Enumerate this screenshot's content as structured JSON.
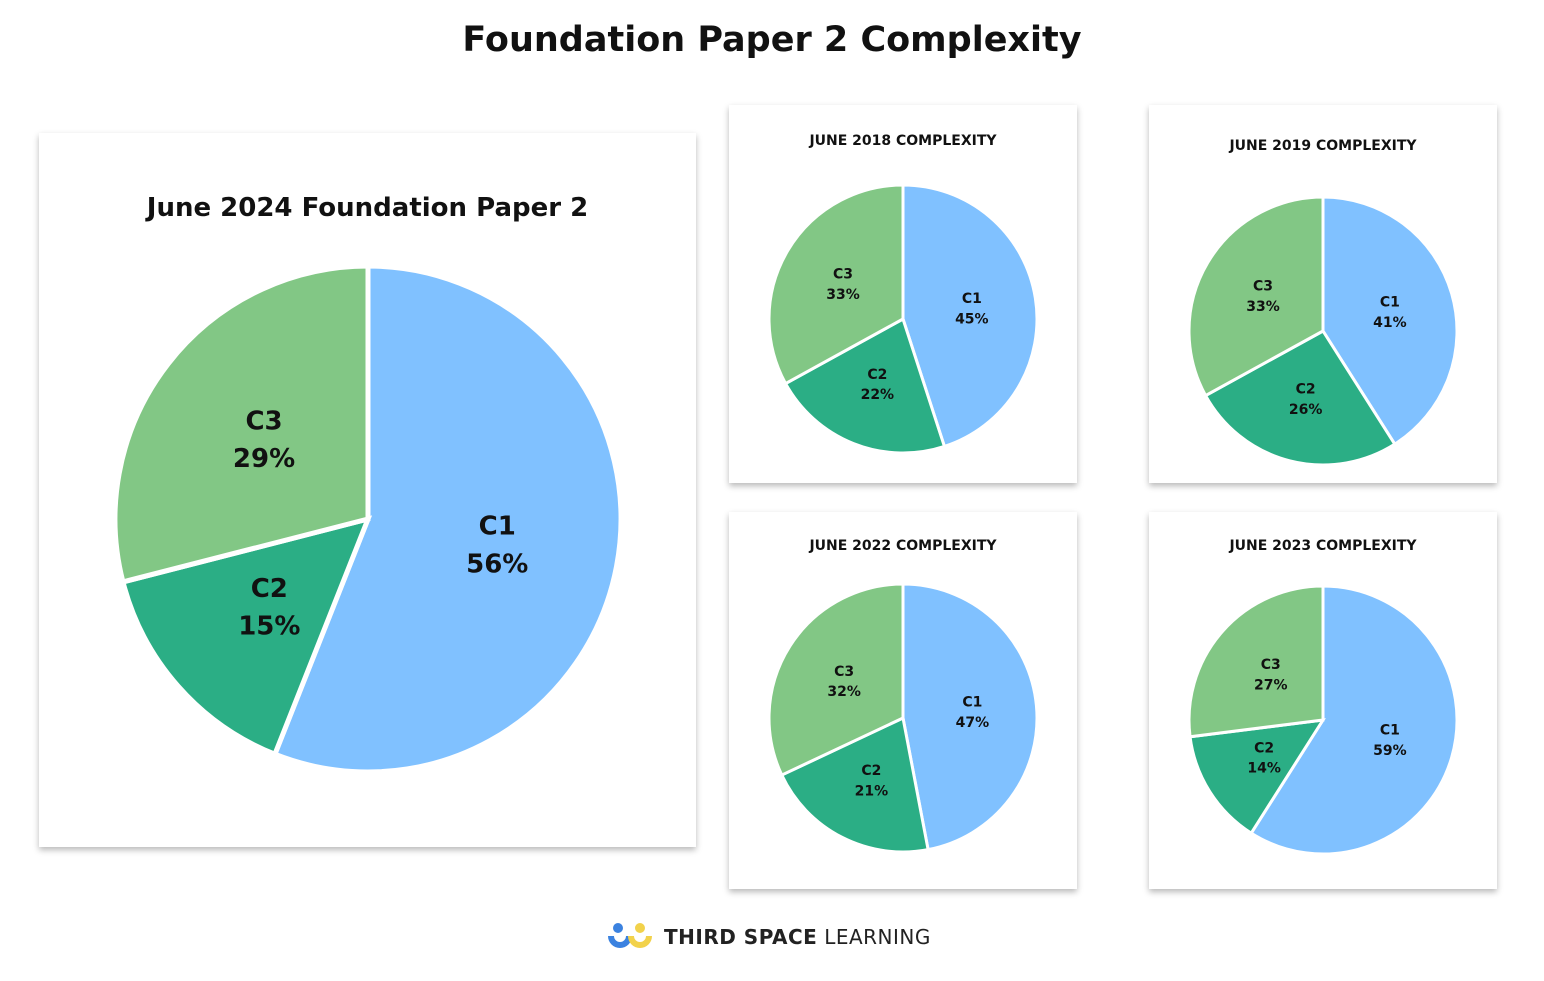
{
  "title": "Foundation Paper 2 Complexity",
  "colors": {
    "C1": "#80C1FF",
    "C2": "#2BAE85",
    "C3": "#82C785"
  },
  "chart_data": [
    {
      "type": "pie",
      "title": "June 2024 Foundation Paper 2",
      "categories": [
        "C1",
        "C2",
        "C3"
      ],
      "values": [
        56,
        15,
        29
      ]
    },
    {
      "type": "pie",
      "title": "JUNE 2018 COMPLEXITY",
      "categories": [
        "C1",
        "C2",
        "C3"
      ],
      "values": [
        45,
        22,
        33
      ]
    },
    {
      "type": "pie",
      "title": "JUNE 2019 COMPLEXITY",
      "categories": [
        "C1",
        "C2",
        "C3"
      ],
      "values": [
        41,
        26,
        33
      ]
    },
    {
      "type": "pie",
      "title": "JUNE 2022 COMPLEXITY",
      "categories": [
        "C1",
        "C2",
        "C3"
      ],
      "values": [
        47,
        21,
        32
      ]
    },
    {
      "type": "pie",
      "title": "JUNE 2023 COMPLEXITY",
      "categories": [
        "C1",
        "C2",
        "C3"
      ],
      "values": [
        59,
        14,
        27
      ]
    }
  ],
  "footer": {
    "brand_bold": "THIRD SPACE",
    "brand_light": "LEARNING"
  }
}
